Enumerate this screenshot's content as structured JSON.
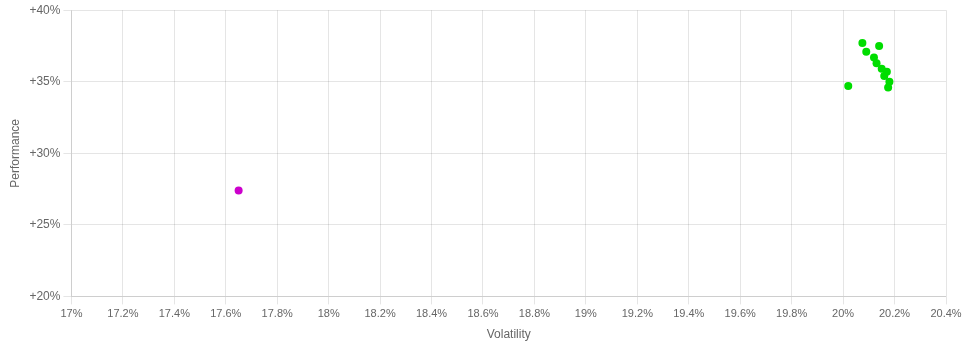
{
  "chart_data": {
    "type": "scatter",
    "xlabel": "Volatility",
    "ylabel": "Performance",
    "xlim": [
      0.17,
      0.204
    ],
    "ylim": [
      0.2,
      0.4
    ],
    "xticks": [
      {
        "value": 0.17,
        "label": "17%"
      },
      {
        "value": 0.172,
        "label": "17.2%"
      },
      {
        "value": 0.174,
        "label": "17.4%"
      },
      {
        "value": 0.176,
        "label": "17.6%"
      },
      {
        "value": 0.178,
        "label": "17.8%"
      },
      {
        "value": 0.18,
        "label": "18%"
      },
      {
        "value": 0.182,
        "label": "18.2%"
      },
      {
        "value": 0.184,
        "label": "18.4%"
      },
      {
        "value": 0.186,
        "label": "18.6%"
      },
      {
        "value": 0.188,
        "label": "18.8%"
      },
      {
        "value": 0.19,
        "label": "19%"
      },
      {
        "value": 0.192,
        "label": "19.2%"
      },
      {
        "value": 0.194,
        "label": "19.4%"
      },
      {
        "value": 0.196,
        "label": "19.6%"
      },
      {
        "value": 0.198,
        "label": "19.8%"
      },
      {
        "value": 0.2,
        "label": "20%"
      },
      {
        "value": 0.202,
        "label": "20.2%"
      },
      {
        "value": 0.204,
        "label": "20.4%"
      }
    ],
    "yticks": [
      {
        "value": 0.2,
        "label": "+20%"
      },
      {
        "value": 0.25,
        "label": "+25%"
      },
      {
        "value": 0.3,
        "label": "+30%"
      },
      {
        "value": 0.35,
        "label": "+35%"
      },
      {
        "value": 0.4,
        "label": "+40%"
      }
    ],
    "grid": true,
    "series": [
      {
        "color": "#00dd00",
        "marker": "circle",
        "x": [
          0.20075,
          0.2014,
          0.2009,
          0.2012,
          0.2013,
          0.2015,
          0.2017,
          0.2016,
          0.2018,
          0.2002,
          0.20175
        ],
        "values": [
          0.377,
          0.375,
          0.371,
          0.367,
          0.363,
          0.359,
          0.357,
          0.354,
          0.35,
          0.347,
          0.346
        ]
      },
      {
        "color": "#cc00cc",
        "marker": "circle",
        "x": [
          0.1765
        ],
        "values": [
          0.274
        ]
      }
    ]
  }
}
